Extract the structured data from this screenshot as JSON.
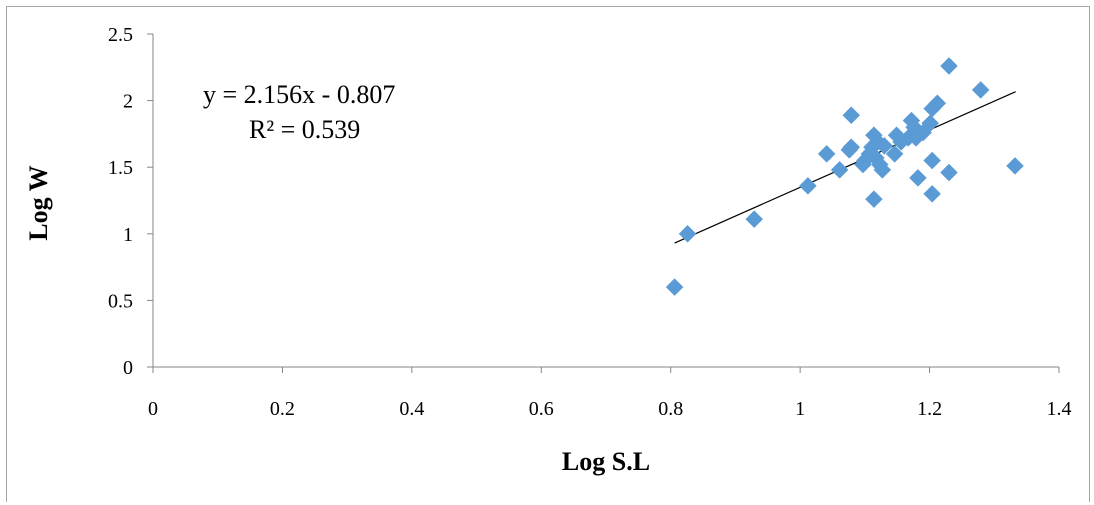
{
  "chart_data": {
    "type": "scatter",
    "title": "",
    "xlabel": "Log S.L",
    "ylabel": "Log W",
    "xlim": [
      0,
      1.4
    ],
    "ylim": [
      0,
      2.5
    ],
    "xticks": [
      "0",
      "0.2",
      "0.4",
      "0.6",
      "0.8",
      "1",
      "1.2",
      "1.4"
    ],
    "yticks": [
      "0",
      "0.5",
      "1",
      "1.5",
      "2",
      "2.5"
    ],
    "grid": false,
    "marker": "diamond",
    "marker_color": "#5b9bd5",
    "trendline": {
      "type": "linear",
      "slope": 2.156,
      "intercept": -0.807,
      "x_range": [
        0.806,
        1.333
      ],
      "color": "#000000"
    },
    "annotations": {
      "equation": "y = 2.156x - 0.807",
      "r_squared": "R² = 0.539"
    },
    "points": [
      {
        "x": 0.806,
        "y": 0.6
      },
      {
        "x": 0.826,
        "y": 1.0
      },
      {
        "x": 0.929,
        "y": 1.11
      },
      {
        "x": 1.012,
        "y": 1.36
      },
      {
        "x": 1.041,
        "y": 1.6
      },
      {
        "x": 1.061,
        "y": 1.48
      },
      {
        "x": 1.076,
        "y": 1.63
      },
      {
        "x": 1.079,
        "y": 1.65
      },
      {
        "x": 1.079,
        "y": 1.89
      },
      {
        "x": 1.097,
        "y": 1.52
      },
      {
        "x": 1.1,
        "y": 1.55
      },
      {
        "x": 1.107,
        "y": 1.6
      },
      {
        "x": 1.111,
        "y": 1.65
      },
      {
        "x": 1.114,
        "y": 1.26
      },
      {
        "x": 1.114,
        "y": 1.74
      },
      {
        "x": 1.117,
        "y": 1.57
      },
      {
        "x": 1.12,
        "y": 1.69
      },
      {
        "x": 1.123,
        "y": 1.52
      },
      {
        "x": 1.127,
        "y": 1.48
      },
      {
        "x": 1.13,
        "y": 1.66
      },
      {
        "x": 1.146,
        "y": 1.6
      },
      {
        "x": 1.149,
        "y": 1.74
      },
      {
        "x": 1.156,
        "y": 1.69
      },
      {
        "x": 1.167,
        "y": 1.72
      },
      {
        "x": 1.172,
        "y": 1.85
      },
      {
        "x": 1.176,
        "y": 1.8
      },
      {
        "x": 1.179,
        "y": 1.72
      },
      {
        "x": 1.182,
        "y": 1.42
      },
      {
        "x": 1.19,
        "y": 1.76
      },
      {
        "x": 1.201,
        "y": 1.83
      },
      {
        "x": 1.204,
        "y": 1.3
      },
      {
        "x": 1.204,
        "y": 1.55
      },
      {
        "x": 1.204,
        "y": 1.94
      },
      {
        "x": 1.212,
        "y": 1.98
      },
      {
        "x": 1.23,
        "y": 1.46
      },
      {
        "x": 1.23,
        "y": 2.26
      },
      {
        "x": 1.279,
        "y": 2.08
      },
      {
        "x": 1.332,
        "y": 1.51
      }
    ]
  }
}
